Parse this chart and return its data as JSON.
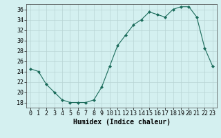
{
  "x": [
    0,
    1,
    2,
    3,
    4,
    5,
    6,
    7,
    8,
    9,
    10,
    11,
    12,
    13,
    14,
    15,
    16,
    17,
    18,
    19,
    20,
    21,
    22,
    23
  ],
  "y": [
    24.5,
    24.0,
    21.5,
    20.0,
    18.5,
    18.0,
    18.0,
    18.0,
    18.5,
    21.0,
    25.0,
    29.0,
    31.0,
    33.0,
    34.0,
    35.5,
    35.0,
    34.5,
    36.0,
    36.5,
    36.5,
    34.5,
    28.5,
    25.0
  ],
  "xlabel": "Humidex (Indice chaleur)",
  "ylabel": "",
  "ylim": [
    17,
    37
  ],
  "xlim": [
    -0.5,
    23.5
  ],
  "yticks": [
    18,
    20,
    22,
    24,
    26,
    28,
    30,
    32,
    34,
    36
  ],
  "xticks": [
    0,
    1,
    2,
    3,
    4,
    5,
    6,
    7,
    8,
    9,
    10,
    11,
    12,
    13,
    14,
    15,
    16,
    17,
    18,
    19,
    20,
    21,
    22,
    23
  ],
  "line_color": "#1a6b5a",
  "marker": "D",
  "marker_size": 2.0,
  "bg_color": "#d4f0f0",
  "grid_color": "#b8d4d4",
  "xlabel_fontsize": 7,
  "tick_fontsize": 6
}
